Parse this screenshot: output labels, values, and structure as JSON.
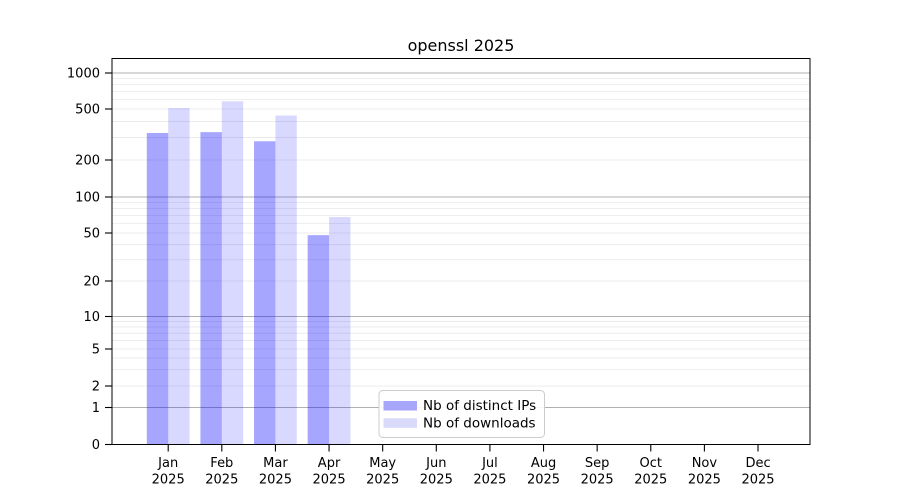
{
  "figure": {
    "title": "openssl 2025"
  },
  "chart_data": {
    "type": "bar",
    "title": "openssl 2025",
    "x_months": [
      "Jan",
      "Feb",
      "Mar",
      "Apr",
      "May",
      "Jun",
      "Jul",
      "Aug",
      "Sep",
      "Oct",
      "Nov",
      "Dec"
    ],
    "x_year": "2025",
    "series": [
      {
        "name": "Nb of distinct IPs",
        "base_color": "#0000ff",
        "opacity": 0.35,
        "legend_color": "#a6a6fa",
        "values": [
          325,
          330,
          280,
          48,
          null,
          null,
          null,
          null,
          null,
          null,
          null,
          null
        ]
      },
      {
        "name": "Nb of downloads",
        "base_color": "#0000ff",
        "opacity": 0.15,
        "legend_color": "#d9d9fa",
        "values": [
          510,
          580,
          445,
          68,
          null,
          null,
          null,
          null,
          null,
          null,
          null,
          null
        ]
      }
    ],
    "y_ticks": [
      0,
      1,
      2,
      5,
      10,
      20,
      50,
      100,
      200,
      500,
      1000
    ],
    "y_scale": "symlog",
    "ylim": [
      0,
      1300
    ],
    "grid": true,
    "major_grid_color": "#b0b0b0",
    "minor_grid_color": "#e8e8e8",
    "spine_color": "#000000",
    "legend_position": "lower-center",
    "legend_border_color": "#cccccc"
  }
}
